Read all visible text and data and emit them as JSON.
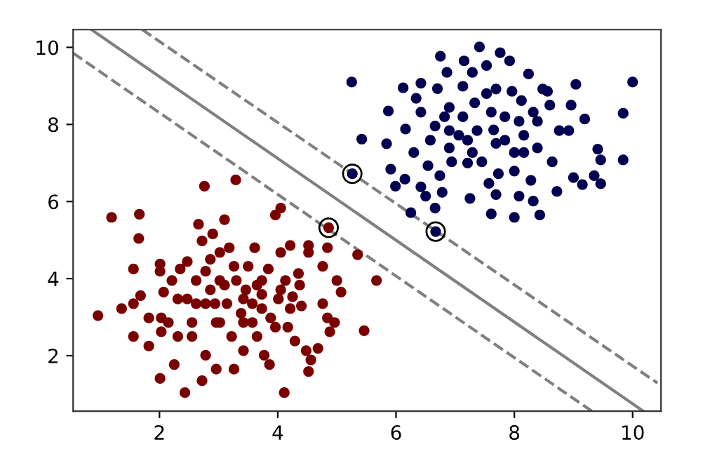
{
  "chart_data": {
    "type": "scatter",
    "xlim": [
      0.54,
      10.48
    ],
    "ylim": [
      0.56,
      10.46
    ],
    "xticks": [
      2,
      4,
      6,
      8,
      10
    ],
    "yticks": [
      2,
      4,
      6,
      8,
      10
    ],
    "grid": false,
    "legend": false,
    "series": [
      {
        "marker": "circle",
        "color": "#7a0000",
        "x": [
          0.96,
          1.19,
          1.66,
          1.65,
          1.56,
          1.36,
          1.56,
          1.68,
          1.56,
          1.82,
          1.82,
          2.01,
          2.01,
          2.07,
          2.03,
          2.03,
          2.01,
          2.25,
          2.31,
          2.21,
          2.35,
          2.43,
          2.47,
          2.55,
          2.62,
          2.66,
          2.72,
          2.76,
          2.72,
          2.78,
          2.78,
          2.86,
          2.9,
          2.96,
          2.96,
          3.02,
          3.02,
          3.1,
          3.14,
          3.18,
          3.22,
          3.26,
          3.29,
          3.3,
          3.38,
          3.42,
          3.46,
          3.5,
          3.57,
          3.61,
          3.65,
          3.65,
          3.73,
          3.77,
          3.84,
          3.86,
          3.88,
          3.96,
          4.01,
          4.05,
          4.05,
          4.11,
          4.13,
          4.17,
          4.21,
          4.25,
          4.29,
          4.35,
          4.4,
          4.48,
          4.52,
          4.52,
          4.52,
          4.56,
          4.68,
          4.76,
          4.76,
          4.84,
          4.84,
          4.88,
          4.96,
          5.0,
          5.07,
          5.35,
          5.46,
          5.67,
          4.86,
          2.31,
          2.62,
          2.86,
          3.1,
          3.42,
          3.73,
          4.05,
          4.21,
          3.73,
          3.26,
          2.78,
          2.47,
          2.94,
          3.57,
          3.96,
          2.55,
          2.15,
          3.02,
          3.42,
          4.37
        ],
        "values": [
          3.04,
          5.59,
          5.67,
          5.04,
          4.25,
          3.22,
          3.35,
          3.56,
          2.5,
          2.98,
          2.25,
          4.38,
          4.19,
          3.65,
          2.98,
          2.62,
          1.41,
          1.77,
          2.5,
          3.95,
          4.25,
          1.04,
          3.47,
          2.86,
          3.95,
          5.41,
          4.98,
          6.4,
          1.35,
          2.01,
          3.35,
          4.5,
          5.16,
          2.86,
          1.65,
          4.68,
          3.95,
          5.53,
          3.35,
          4.8,
          2.5,
          1.65,
          6.56,
          3.95,
          3.1,
          2.13,
          3.71,
          4.32,
          3.35,
          4.8,
          3.83,
          2.5,
          3.22,
          2.01,
          4.25,
          1.77,
          2.98,
          5.65,
          3.47,
          5.83,
          4.68,
          1.04,
          3.95,
          2.74,
          4.86,
          3.53,
          2.38,
          4.13,
          3.29,
          2.13,
          4.86,
          4.68,
          1.59,
          1.89,
          2.19,
          4.32,
          3.35,
          4.8,
          2.98,
          2.62,
          2.86,
          3.95,
          3.65,
          4.62,
          2.65,
          3.95,
          5.32,
          3.47,
          3.35,
          3.71,
          3.83,
          3.47,
          3.59,
          3.71,
          3.22,
          3.95,
          4.32,
          4.19,
          4.44,
          3.35,
          2.86,
          2.74,
          2.5,
          2.86,
          2.86,
          2.86,
          3.83
        ]
      },
      {
        "marker": "circle",
        "color": "#000050",
        "x": [
          5.25,
          5.42,
          5.84,
          5.87,
          6.12,
          5.91,
          5.99,
          6.15,
          6.16,
          6.25,
          6.3,
          6.34,
          6.42,
          6.42,
          6.5,
          6.54,
          6.58,
          6.66,
          6.7,
          6.74,
          6.75,
          6.78,
          6.82,
          6.86,
          6.9,
          6.94,
          7.13,
          7.15,
          7.21,
          7.25,
          7.29,
          7.33,
          7.41,
          7.45,
          7.53,
          7.57,
          7.61,
          7.65,
          7.69,
          7.73,
          7.76,
          7.84,
          7.92,
          7.96,
          8.0,
          8.0,
          8.08,
          8.12,
          8.16,
          8.24,
          8.28,
          8.32,
          8.39,
          8.43,
          8.48,
          8.6,
          8.64,
          8.72,
          8.76,
          8.92,
          9.0,
          9.04,
          8.96,
          9.15,
          9.19,
          9.35,
          9.41,
          9.46,
          9.46,
          9.84,
          9.84,
          10.0,
          6.42,
          6.66,
          6.9,
          7.13,
          7.37,
          7.61,
          7.84,
          8.08,
          8.32,
          7.29,
          7.69,
          8.16,
          7.06,
          7.53,
          8.0,
          7.69,
          6.9,
          8.39,
          8.56,
          7.21,
          5.26,
          6.67
        ],
        "values": [
          9.1,
          7.62,
          7.5,
          8.35,
          8.95,
          6.84,
          6.4,
          6.58,
          7.88,
          5.71,
          7.27,
          8.68,
          9.07,
          6.38,
          6.14,
          6.93,
          7.59,
          5.83,
          8.93,
          6.67,
          9.77,
          6.24,
          8.2,
          9.35,
          7.39,
          7.03,
          8.99,
          9.65,
          7.59,
          6.08,
          9.35,
          8.56,
          10.01,
          7.03,
          9.53,
          6.47,
          5.68,
          7.86,
          8.92,
          6.72,
          9.86,
          8.2,
          9.65,
          8.86,
          5.59,
          7.27,
          6.14,
          8.62,
          7.72,
          9.31,
          6.55,
          6.01,
          8.08,
          5.65,
          8.92,
          8.5,
          7.03,
          6.26,
          7.84,
          7.84,
          6.62,
          9.04,
          8.5,
          6.44,
          8.14,
          6.67,
          7.36,
          7.08,
          6.46,
          8.29,
          7.08,
          9.1,
          8.32,
          7.96,
          8.44,
          8.2,
          7.84,
          8.32,
          7.59,
          8.08,
          8.32,
          7.27,
          7.51,
          7.27,
          7.72,
          8.8,
          6.79,
          6.18,
          7.84,
          7.39,
          8.86,
          7.0,
          6.72,
          5.22
        ]
      },
      {
        "marker": "circle",
        "color": "#000000",
        "line_style": "solid",
        "x": [
          4.86,
          5.26,
          6.67
        ],
        "values": [
          5.32,
          6.72,
          5.22
        ]
      },
      {
        "type": "line",
        "marker": "none",
        "color": "#808080",
        "line_style": "solid",
        "x": [
          0.85,
          10.18
        ],
        "values": [
          10.46,
          0.56
        ]
      },
      {
        "type": "line",
        "marker": "none",
        "color": "#808080",
        "line_style": "dashed",
        "x": [
          1.71,
          10.42
        ],
        "values": [
          10.46,
          1.29
        ]
      },
      {
        "type": "line",
        "marker": "none",
        "color": "#808080",
        "line_style": "dashed",
        "x": [
          0.54,
          9.31
        ],
        "values": [
          9.85,
          0.56
        ]
      }
    ]
  }
}
